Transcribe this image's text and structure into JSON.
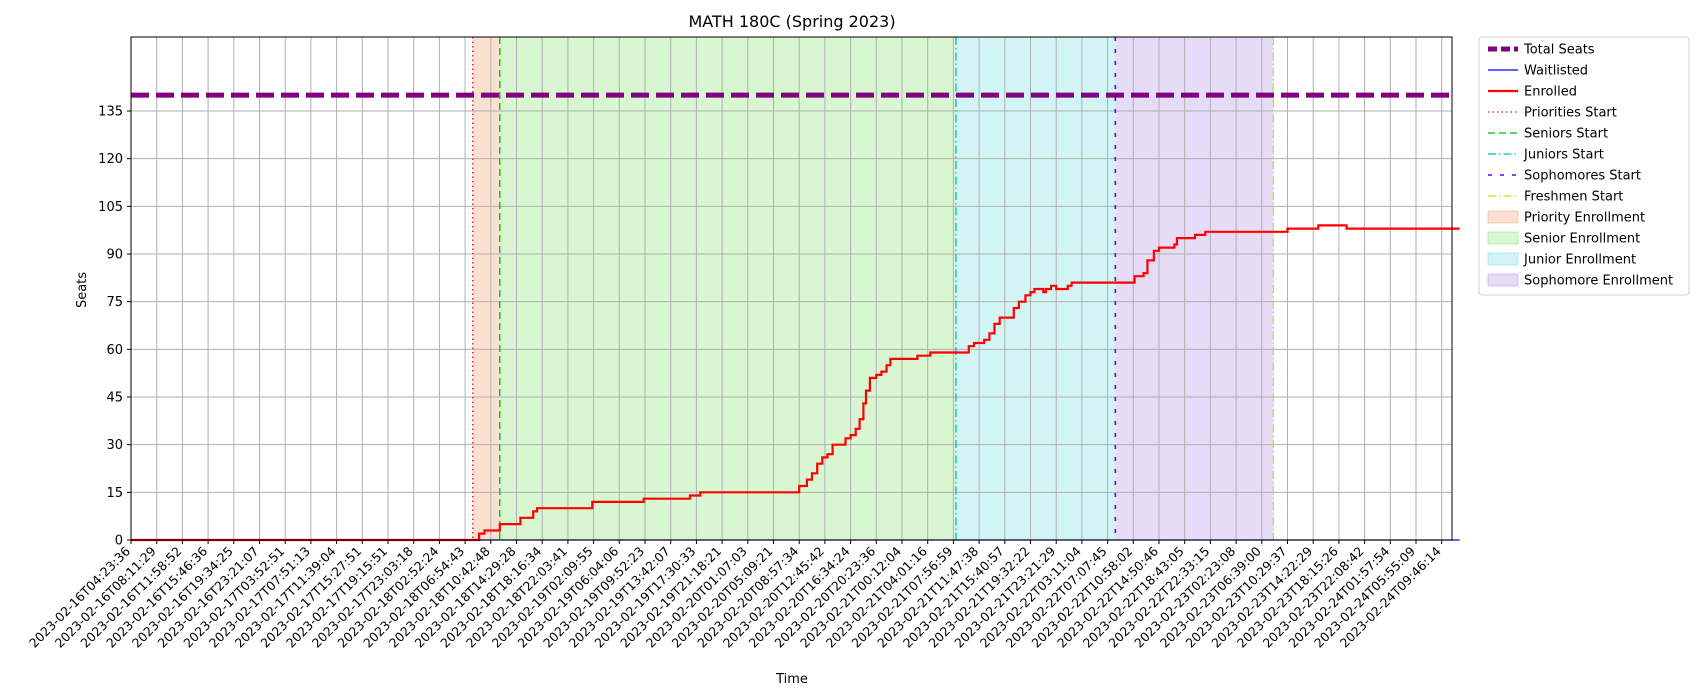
{
  "chart_data": {
    "type": "line",
    "title": "MATH 180C (Spring 2023)",
    "xlabel": "Time",
    "ylabel": "Seats",
    "ylim": [
      0,
      140
    ],
    "yticks": [
      0,
      15,
      30,
      45,
      60,
      75,
      90,
      105,
      120,
      135
    ],
    "x_ticks": [
      "2023-02-16T04:23:36",
      "2023-02-16T08:11:29",
      "2023-02-16T11:58:52",
      "2023-02-16T15:46:36",
      "2023-02-16T19:34:25",
      "2023-02-16T23:21:07",
      "2023-02-17T03:52:51",
      "2023-02-17T07:51:13",
      "2023-02-17T11:39:04",
      "2023-02-17T15:27:51",
      "2023-02-17T19:15:51",
      "2023-02-17T23:03:18",
      "2023-02-18T02:52:24",
      "2023-02-18T06:54:43",
      "2023-02-18T10:42:48",
      "2023-02-18T14:29:28",
      "2023-02-18T18:16:34",
      "2023-02-18T22:03:41",
      "2023-02-19T02:09:55",
      "2023-02-19T06:04:06",
      "2023-02-19T09:52:23",
      "2023-02-19T13:42:07",
      "2023-02-19T17:30:33",
      "2023-02-19T21:18:21",
      "2023-02-20T01:07:03",
      "2023-02-20T05:09:21",
      "2023-02-20T08:57:34",
      "2023-02-20T12:45:42",
      "2023-02-20T16:34:24",
      "2023-02-20T20:23:36",
      "2023-02-21T00:12:04",
      "2023-02-21T04:01:16",
      "2023-02-21T07:56:59",
      "2023-02-21T11:47:38",
      "2023-02-21T15:40:57",
      "2023-02-21T19:32:22",
      "2023-02-21T23:21:29",
      "2023-02-22T03:11:04",
      "2023-02-22T07:07:45",
      "2023-02-22T10:58:02",
      "2023-02-22T14:50:46",
      "2023-02-22T18:43:05",
      "2023-02-22T22:33:15",
      "2023-02-23T02:23:08",
      "2023-02-23T06:39:00",
      "2023-02-23T10:29:37",
      "2023-02-23T14:22:29",
      "2023-02-23T18:15:26",
      "2023-02-23T22:08:42",
      "2023-02-24T01:57:54",
      "2023-02-24T05:55:09",
      "2023-02-24T09:46:14"
    ],
    "x_range": [
      0,
      51.7
    ],
    "total_seats": 140,
    "waitlisted": [
      [
        0,
        0
      ],
      [
        51.7,
        0
      ]
    ],
    "enrolled": [
      [
        0,
        0
      ],
      [
        13.5,
        0
      ],
      [
        13.55,
        2
      ],
      [
        13.75,
        3
      ],
      [
        14.3,
        3
      ],
      [
        14.35,
        5
      ],
      [
        15.1,
        5
      ],
      [
        15.15,
        7
      ],
      [
        15.6,
        7
      ],
      [
        15.65,
        9
      ],
      [
        15.8,
        10
      ],
      [
        17.9,
        10
      ],
      [
        17.95,
        12
      ],
      [
        19.9,
        12
      ],
      [
        19.95,
        13
      ],
      [
        21.7,
        13
      ],
      [
        21.75,
        14
      ],
      [
        22.1,
        14
      ],
      [
        22.15,
        15
      ],
      [
        25.9,
        15
      ],
      [
        26.0,
        17
      ],
      [
        26.2,
        17
      ],
      [
        26.3,
        19
      ],
      [
        26.5,
        21
      ],
      [
        26.6,
        21
      ],
      [
        26.7,
        24
      ],
      [
        26.9,
        26
      ],
      [
        27.1,
        27
      ],
      [
        27.3,
        30
      ],
      [
        27.6,
        30
      ],
      [
        27.8,
        32
      ],
      [
        28.0,
        33
      ],
      [
        28.2,
        35
      ],
      [
        28.35,
        38
      ],
      [
        28.5,
        43
      ],
      [
        28.6,
        47
      ],
      [
        28.75,
        51
      ],
      [
        29.0,
        52
      ],
      [
        29.2,
        53
      ],
      [
        29.4,
        55
      ],
      [
        29.55,
        57
      ],
      [
        30.5,
        57
      ],
      [
        30.6,
        58
      ],
      [
        31.0,
        58
      ],
      [
        31.1,
        59
      ],
      [
        32.5,
        59
      ],
      [
        32.6,
        61
      ],
      [
        32.8,
        62
      ],
      [
        33.0,
        62
      ],
      [
        33.2,
        63
      ],
      [
        33.4,
        65
      ],
      [
        33.6,
        68
      ],
      [
        33.8,
        70
      ],
      [
        34.2,
        70
      ],
      [
        34.35,
        73
      ],
      [
        34.55,
        75
      ],
      [
        34.8,
        77
      ],
      [
        35.0,
        78
      ],
      [
        35.15,
        79
      ],
      [
        35.4,
        79
      ],
      [
        35.5,
        78
      ],
      [
        35.6,
        79
      ],
      [
        35.8,
        80
      ],
      [
        36.0,
        79
      ],
      [
        36.3,
        79
      ],
      [
        36.45,
        80
      ],
      [
        36.6,
        81
      ],
      [
        38.9,
        81
      ],
      [
        39.05,
        83
      ],
      [
        39.4,
        84
      ],
      [
        39.55,
        88
      ],
      [
        39.8,
        91
      ],
      [
        40.0,
        92
      ],
      [
        40.4,
        92
      ],
      [
        40.6,
        93
      ],
      [
        40.7,
        95
      ],
      [
        41.3,
        95
      ],
      [
        41.4,
        96
      ],
      [
        41.7,
        96
      ],
      [
        41.8,
        97
      ],
      [
        44.9,
        97
      ],
      [
        45.0,
        98
      ],
      [
        46.1,
        98
      ],
      [
        46.2,
        99
      ],
      [
        47.2,
        99
      ],
      [
        47.3,
        98
      ],
      [
        51.7,
        98
      ]
    ],
    "phases": [
      {
        "name": "Priorities Start",
        "x": 13.3,
        "color": "#ff0000",
        "dash": "dotted"
      },
      {
        "name": "Seniors Start",
        "x": 14.35,
        "color": "#00bb00",
        "dash": "dashed"
      },
      {
        "name": "Juniors Start",
        "x": 32.1,
        "color": "#00bfbf",
        "dash": "dashdot"
      },
      {
        "name": "Sophomores Start",
        "x": 38.3,
        "color": "#6600ee",
        "dash": "loosedash"
      },
      {
        "name": "Freshmen Start",
        "x": 44.45,
        "color": "#dddd00",
        "dash": "dashdot"
      }
    ],
    "spans": [
      {
        "name": "Priority Enrollment",
        "x0": 13.3,
        "x1": 14.35,
        "color": "#f3a47a"
      },
      {
        "name": "Senior Enrollment",
        "x0": 14.35,
        "x1": 32.1,
        "color": "#8de67a"
      },
      {
        "name": "Junior Enrollment",
        "x0": 32.1,
        "x1": 38.3,
        "color": "#7ee0e3"
      },
      {
        "name": "Sophomore Enrollment",
        "x0": 38.3,
        "x1": 44.45,
        "color": "#b79ae9"
      }
    ],
    "legend": {
      "position": "outside-right",
      "entries": [
        {
          "label": "Total Seats",
          "kind": "line",
          "color": "#800080",
          "width": 5,
          "dash": "dashed"
        },
        {
          "label": "Waitlisted",
          "kind": "line",
          "color": "#0000ff",
          "width": 1.2,
          "dash": "solid"
        },
        {
          "label": "Enrolled",
          "kind": "line",
          "color": "#ff0000",
          "width": 2.2,
          "dash": "solid"
        },
        {
          "label": "Priorities Start",
          "kind": "line",
          "color": "#ff0000",
          "width": 1.2,
          "dash": "dotted"
        },
        {
          "label": "Seniors Start",
          "kind": "line",
          "color": "#00bb00",
          "width": 1.2,
          "dash": "dashed"
        },
        {
          "label": "Juniors Start",
          "kind": "line",
          "color": "#00bfbf",
          "width": 1.2,
          "dash": "dashdot"
        },
        {
          "label": "Sophomores Start",
          "kind": "line",
          "color": "#6600ee",
          "width": 1.5,
          "dash": "loosedash"
        },
        {
          "label": "Freshmen Start",
          "kind": "line",
          "color": "#dddd00",
          "width": 1.2,
          "dash": "dashdot"
        },
        {
          "label": "Priority Enrollment",
          "kind": "patch",
          "color": "#f3a47a"
        },
        {
          "label": "Senior Enrollment",
          "kind": "patch",
          "color": "#8de67a"
        },
        {
          "label": "Junior Enrollment",
          "kind": "patch",
          "color": "#7ee0e3"
        },
        {
          "label": "Sophomore Enrollment",
          "kind": "patch",
          "color": "#b79ae9"
        }
      ]
    },
    "grid": true
  }
}
